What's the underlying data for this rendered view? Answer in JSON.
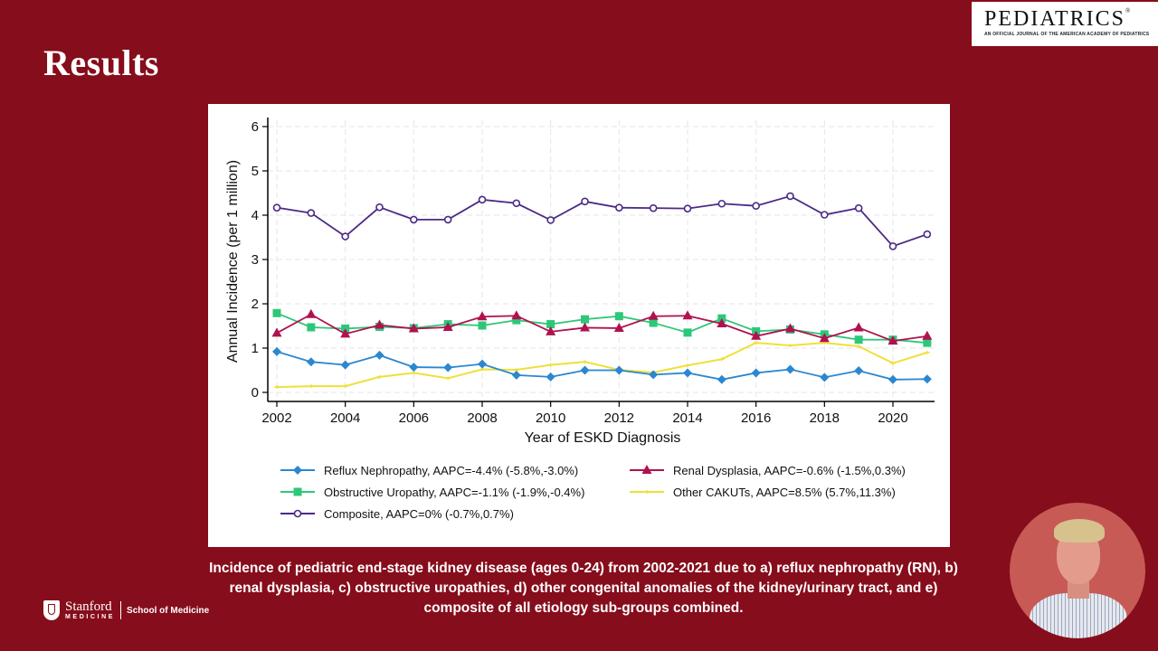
{
  "slide": {
    "title": "Results",
    "journal": {
      "name": "PEDIATRICS",
      "reg": "®",
      "subtitle": "AN OFFICIAL JOURNAL OF THE AMERICAN ACADEMY OF PEDIATRICS"
    },
    "caption": "Incidence of pediatric end-stage kidney disease (ages 0-24) from 2002-2021 due to a) reflux nephropathy (RN), b) renal dysplasia, c) obstructive uropathies, d) other congenital anomalies of the kidney/urinary tract, and e) composite of all etiology sub-groups combined.",
    "footer_logo": {
      "name_line1": "Stanford",
      "name_line2": "MEDICINE",
      "school": "School of Medicine"
    },
    "presenter_video": {
      "label": "presenter-webcam"
    },
    "colors": {
      "background": "#860d1b",
      "panel": "#ffffff"
    }
  },
  "chart_data": {
    "type": "line",
    "title": "",
    "xlabel": "Year of ESKD Diagnosis",
    "ylabel": "Annual Incidence (per 1 million)",
    "x": [
      2002,
      2003,
      2004,
      2005,
      2006,
      2007,
      2008,
      2009,
      2010,
      2011,
      2012,
      2013,
      2014,
      2015,
      2016,
      2017,
      2018,
      2019,
      2020,
      2021
    ],
    "xticks": [
      "2002",
      "2004",
      "2006",
      "2008",
      "2010",
      "2012",
      "2014",
      "2016",
      "2018",
      "2020"
    ],
    "yticks": [
      "0",
      "1",
      "2",
      "3",
      "4",
      "5",
      "6"
    ],
    "ylim": [
      0,
      6
    ],
    "xlim": [
      2002,
      2021
    ],
    "grid": true,
    "legend_position": "bottom",
    "series": [
      {
        "name": "Reflux Nephropathy, AAPC=-4.4% (-5.8%,-3.0%)",
        "color": "#2b87d0",
        "marker": "diamond",
        "values": [
          0.92,
          0.69,
          0.62,
          0.84,
          0.57,
          0.56,
          0.64,
          0.39,
          0.35,
          0.5,
          0.5,
          0.4,
          0.44,
          0.29,
          0.44,
          0.52,
          0.34,
          0.49,
          0.29,
          0.3
        ]
      },
      {
        "name": "Renal Dysplasia, AAPC=-0.6% (-1.5%,0.3%)",
        "color": "#b0124f",
        "marker": "triangle",
        "values": [
          1.34,
          1.76,
          1.32,
          1.52,
          1.44,
          1.47,
          1.71,
          1.73,
          1.37,
          1.46,
          1.45,
          1.72,
          1.73,
          1.55,
          1.27,
          1.44,
          1.22,
          1.46,
          1.16,
          1.27
        ]
      },
      {
        "name": "Obstructive Uropathy, AAPC=-1.1% (-1.9%,-0.4%)",
        "color": "#2ec779",
        "marker": "square",
        "values": [
          1.79,
          1.47,
          1.44,
          1.48,
          1.45,
          1.54,
          1.51,
          1.63,
          1.54,
          1.65,
          1.72,
          1.57,
          1.35,
          1.67,
          1.38,
          1.42,
          1.31,
          1.19,
          1.19,
          1.12
        ]
      },
      {
        "name": "Other CAKUTs, AAPC=8.5% (5.7%,11.3%)",
        "color": "#efe03a",
        "marker": "cross",
        "values": [
          0.12,
          0.14,
          0.14,
          0.35,
          0.44,
          0.32,
          0.52,
          0.51,
          0.62,
          0.69,
          0.51,
          0.45,
          0.61,
          0.75,
          1.12,
          1.06,
          1.12,
          1.04,
          0.66,
          0.9
        ]
      },
      {
        "name": "Composite, AAPC=0% (-0.7%,0.7%)",
        "color": "#4b2a86",
        "marker": "circle",
        "values": [
          4.17,
          4.05,
          3.52,
          4.18,
          3.9,
          3.9,
          4.35,
          4.27,
          3.89,
          4.31,
          4.17,
          4.16,
          4.15,
          4.26,
          4.21,
          4.43,
          4.01,
          4.16,
          3.3,
          3.57
        ]
      }
    ],
    "legend_order": [
      0,
      1,
      2,
      3,
      4
    ]
  }
}
